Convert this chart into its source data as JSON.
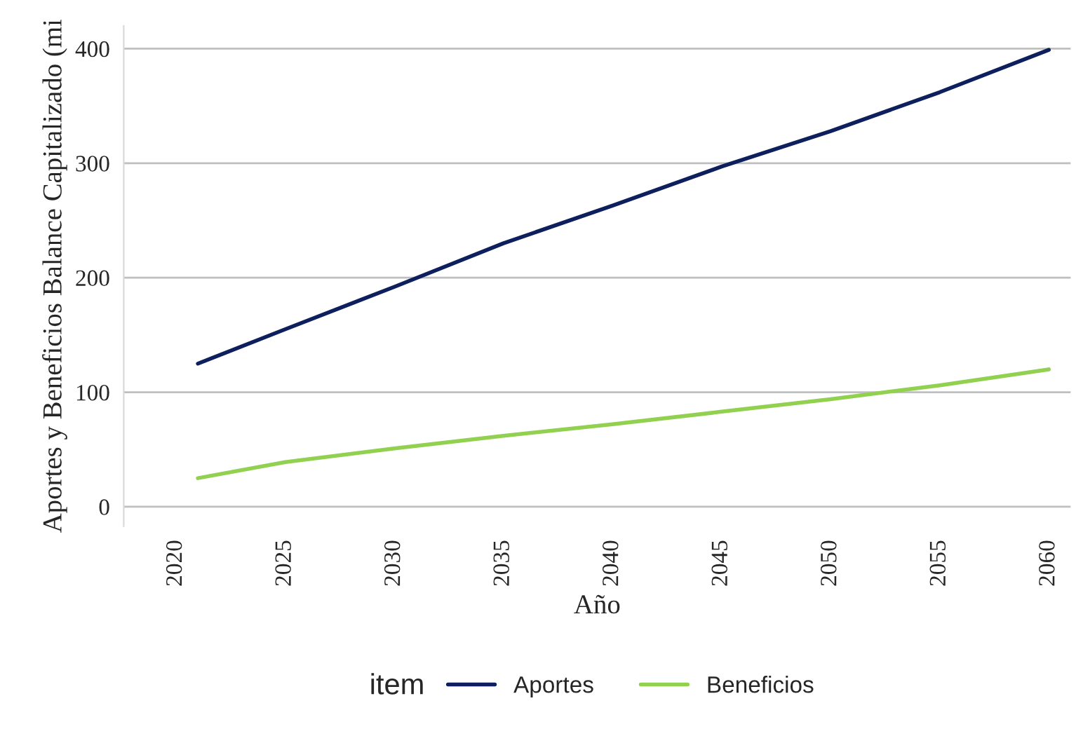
{
  "chart_data": {
    "type": "line",
    "xlabel": "Año",
    "ylabel": "Aportes y Beneficios Balance Capitalizado (mi",
    "legend_title": "item",
    "x": [
      2021,
      2025,
      2030,
      2035,
      2040,
      2045,
      2050,
      2055,
      2060
    ],
    "series": [
      {
        "name": "Aportes",
        "color": "#0d1f5c",
        "values": [
          125,
          155,
          192,
          230,
          263,
          297,
          328,
          362,
          399
        ]
      },
      {
        "name": "Beneficios",
        "color": "#92d050",
        "values": [
          25,
          39,
          51,
          62,
          72,
          83,
          94,
          106,
          120
        ]
      }
    ],
    "xlim": [
      2017.6,
      2061
    ],
    "xticks": [
      2020,
      2025,
      2030,
      2035,
      2040,
      2045,
      2050,
      2055,
      2060
    ],
    "ylim": [
      -17,
      420
    ],
    "yticks": [
      0,
      100,
      200,
      300,
      400
    ],
    "grid": "y",
    "legend": "bottom",
    "marker": "none",
    "line_style": "solid"
  }
}
